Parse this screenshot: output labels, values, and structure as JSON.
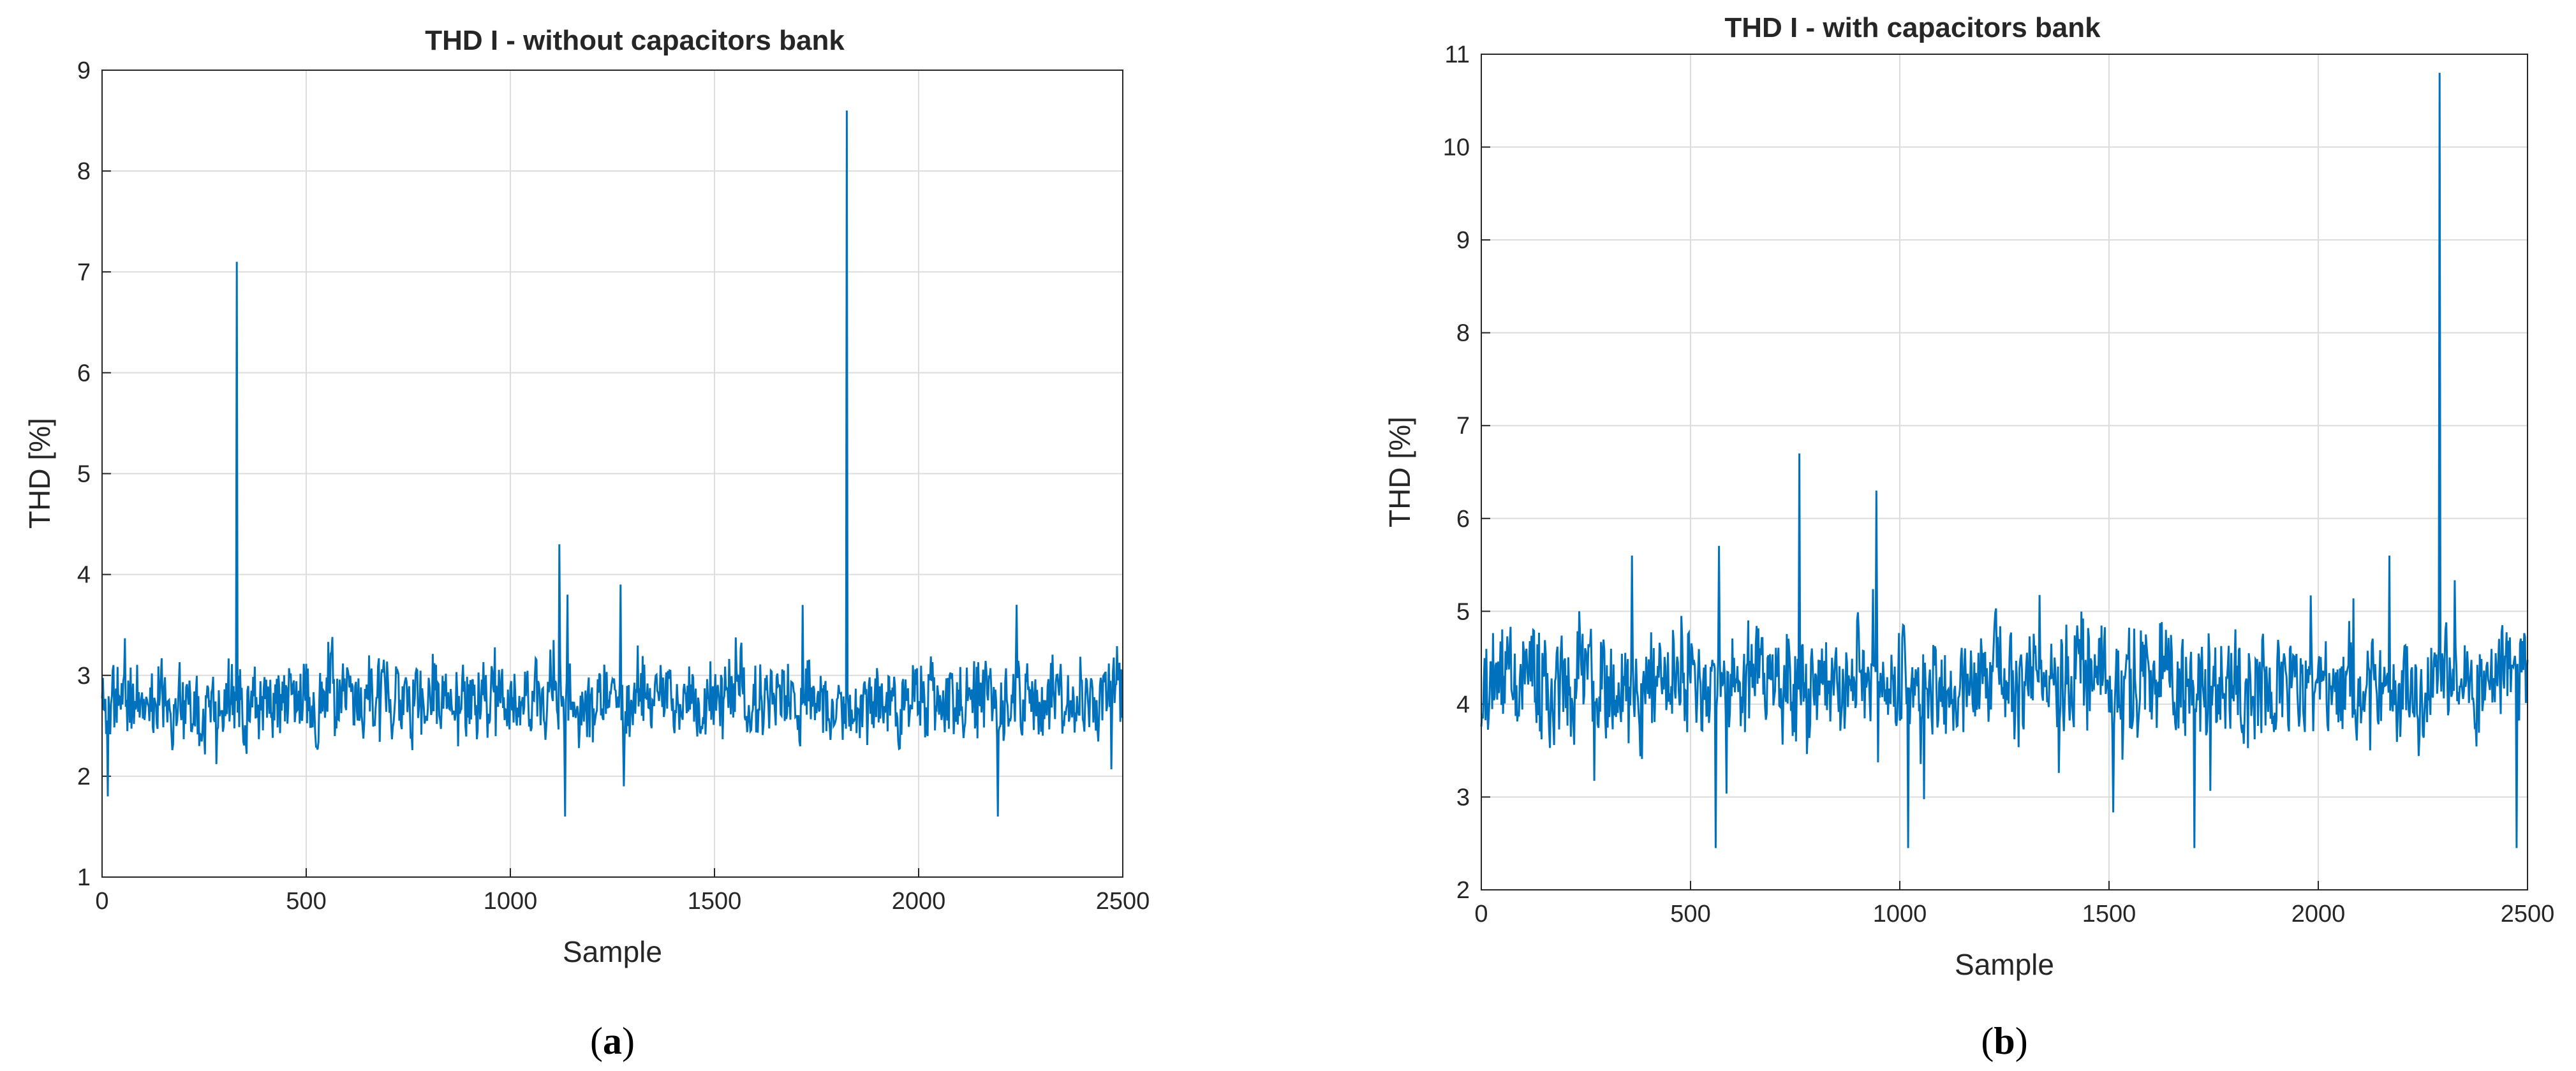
{
  "chart_data": [
    {
      "type": "line",
      "caption_letter": "a",
      "title": "THD I - without capacitors bank",
      "xlabel": "Sample",
      "ylabel": "THD [%]",
      "xlim": [
        0,
        2500
      ],
      "ylim": [
        1,
        9
      ],
      "xticks": [
        0,
        500,
        1000,
        1500,
        2000,
        2500
      ],
      "yticks": [
        1,
        2,
        3,
        4,
        5,
        6,
        7,
        8,
        9
      ],
      "grid": true,
      "line_color": "#0072BD",
      "baseline": 2.75,
      "noise": 0.35,
      "seed": 11,
      "spikes": [
        {
          "x": 330,
          "y": 7.1
        },
        {
          "x": 1120,
          "y": 4.3
        },
        {
          "x": 1140,
          "y": 3.8
        },
        {
          "x": 1270,
          "y": 3.9
        },
        {
          "x": 1825,
          "y": 8.6
        },
        {
          "x": 2240,
          "y": 3.7
        },
        {
          "x": 2195,
          "y": 1.6
        },
        {
          "x": 1135,
          "y": 1.6
        },
        {
          "x": 15,
          "y": 1.8
        }
      ]
    },
    {
      "type": "line",
      "caption_letter": "b",
      "title": "THD I - with capacitors bank",
      "xlabel": "Sample",
      "ylabel": "THD [%]",
      "xlim": [
        0,
        2500
      ],
      "ylim": [
        2,
        11
      ],
      "xticks": [
        0,
        500,
        1000,
        1500,
        2000,
        2500
      ],
      "yticks": [
        2,
        3,
        4,
        5,
        6,
        7,
        8,
        9,
        10,
        11
      ],
      "grid": true,
      "line_color": "#0072BD",
      "baseline": 4.2,
      "noise": 0.55,
      "seed": 29,
      "spikes": [
        {
          "x": 360,
          "y": 5.6
        },
        {
          "x": 760,
          "y": 6.7
        },
        {
          "x": 945,
          "y": 6.3
        },
        {
          "x": 2170,
          "y": 5.6
        },
        {
          "x": 2290,
          "y": 10.8
        },
        {
          "x": 560,
          "y": 2.3
        },
        {
          "x": 1020,
          "y": 2.2
        },
        {
          "x": 1705,
          "y": 2.3
        },
        {
          "x": 2475,
          "y": 2.4
        }
      ]
    }
  ]
}
